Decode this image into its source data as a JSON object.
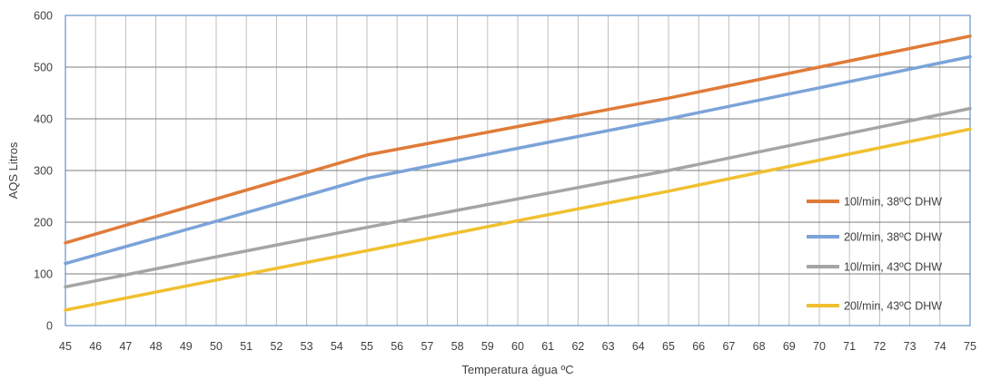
{
  "chart_data": {
    "type": "line",
    "xlabel": "Temperatura água ºC",
    "ylabel": "AQS Litros",
    "xlim": [
      45,
      75
    ],
    "ylim": [
      0,
      600
    ],
    "yticks": [
      "0",
      "100",
      "200",
      "300",
      "400",
      "500",
      "600"
    ],
    "xticks": [
      "45",
      "46",
      "47",
      "48",
      "49",
      "50",
      "51",
      "52",
      "53",
      "54",
      "55",
      "56",
      "57",
      "58",
      "59",
      "60",
      "61",
      "62",
      "63",
      "64",
      "65",
      "66",
      "67",
      "68",
      "69",
      "70",
      "71",
      "72",
      "73",
      "74",
      "75"
    ],
    "grid": true,
    "legend_position": "right",
    "series": [
      {
        "name": "10l/min, 38ºC DHW",
        "color": "#e07b39",
        "points": [
          [
            45,
            160
          ],
          [
            50,
            245
          ],
          [
            55,
            330
          ],
          [
            60,
            385
          ],
          [
            65,
            440
          ],
          [
            70,
            500
          ],
          [
            75,
            560
          ]
        ]
      },
      {
        "name": "20l/min, 38ºC DHW",
        "color": "#7ba3d9",
        "points": [
          [
            45,
            120
          ],
          [
            50,
            202
          ],
          [
            55,
            285
          ],
          [
            60,
            343
          ],
          [
            65,
            400
          ],
          [
            70,
            460
          ],
          [
            75,
            520
          ]
        ]
      },
      {
        "name": "10l/min, 43ºC DHW",
        "color": "#a5a5a5",
        "points": [
          [
            45,
            75
          ],
          [
            50,
            133
          ],
          [
            55,
            190
          ],
          [
            60,
            245
          ],
          [
            65,
            300
          ],
          [
            70,
            360
          ],
          [
            75,
            420
          ]
        ]
      },
      {
        "name": "20l/min, 43ºC DHW",
        "color": "#f0c030",
        "points": [
          [
            45,
            30
          ],
          [
            50,
            88
          ],
          [
            55,
            145
          ],
          [
            60,
            203
          ],
          [
            65,
            260
          ],
          [
            70,
            320
          ],
          [
            75,
            380
          ]
        ]
      }
    ]
  }
}
